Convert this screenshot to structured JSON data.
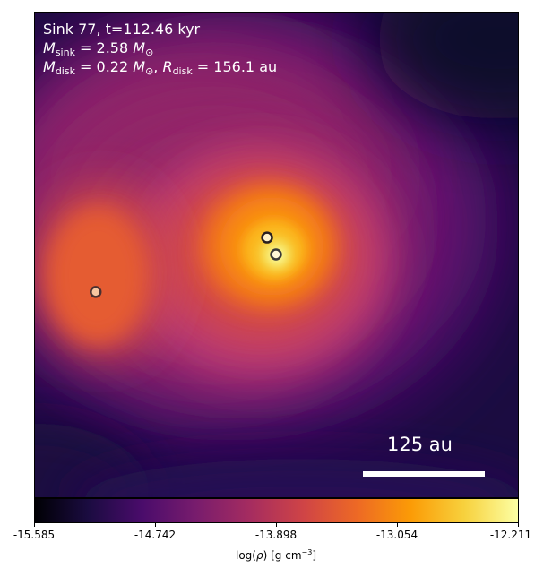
{
  "annotation": {
    "line1": "Sink 77, t=112.46 kyr",
    "line2_mass_symbol": "M",
    "line2_mass_sub": "sink",
    "line2_value": " = 2.58 ",
    "line2_unit": "M",
    "line2_unit_sub": "⊙",
    "line3_mass_symbol": "M",
    "line3_mass_sub": "disk",
    "line3_mass_value": " = 0.22 ",
    "line3_unit": "M",
    "line3_unit_sub": "⊙",
    "line3_sep": ", ",
    "line3_radius_symbol": "R",
    "line3_radius_sub": "disk",
    "line3_radius_value": " = 156.1 au"
  },
  "scale_bar": {
    "label": "125 au"
  },
  "colorbar": {
    "colormap": "inferno",
    "vmin": -15.585,
    "vmax": -12.211,
    "ticks": [
      "-15.585",
      "-14.742",
      "-13.898",
      "-13.054",
      "-12.211"
    ],
    "label_prefix": "log(",
    "label_rho": "ρ",
    "label_mid": ") [g cm",
    "label_exp": "−3",
    "label_suffix": "]"
  },
  "sinks": [
    {
      "name": "sink-1"
    },
    {
      "name": "sink-2"
    },
    {
      "name": "sink-3"
    }
  ],
  "colors": {
    "sink_fill_center": "#fff3c8",
    "sink_edge": "#3a2a2a"
  }
}
